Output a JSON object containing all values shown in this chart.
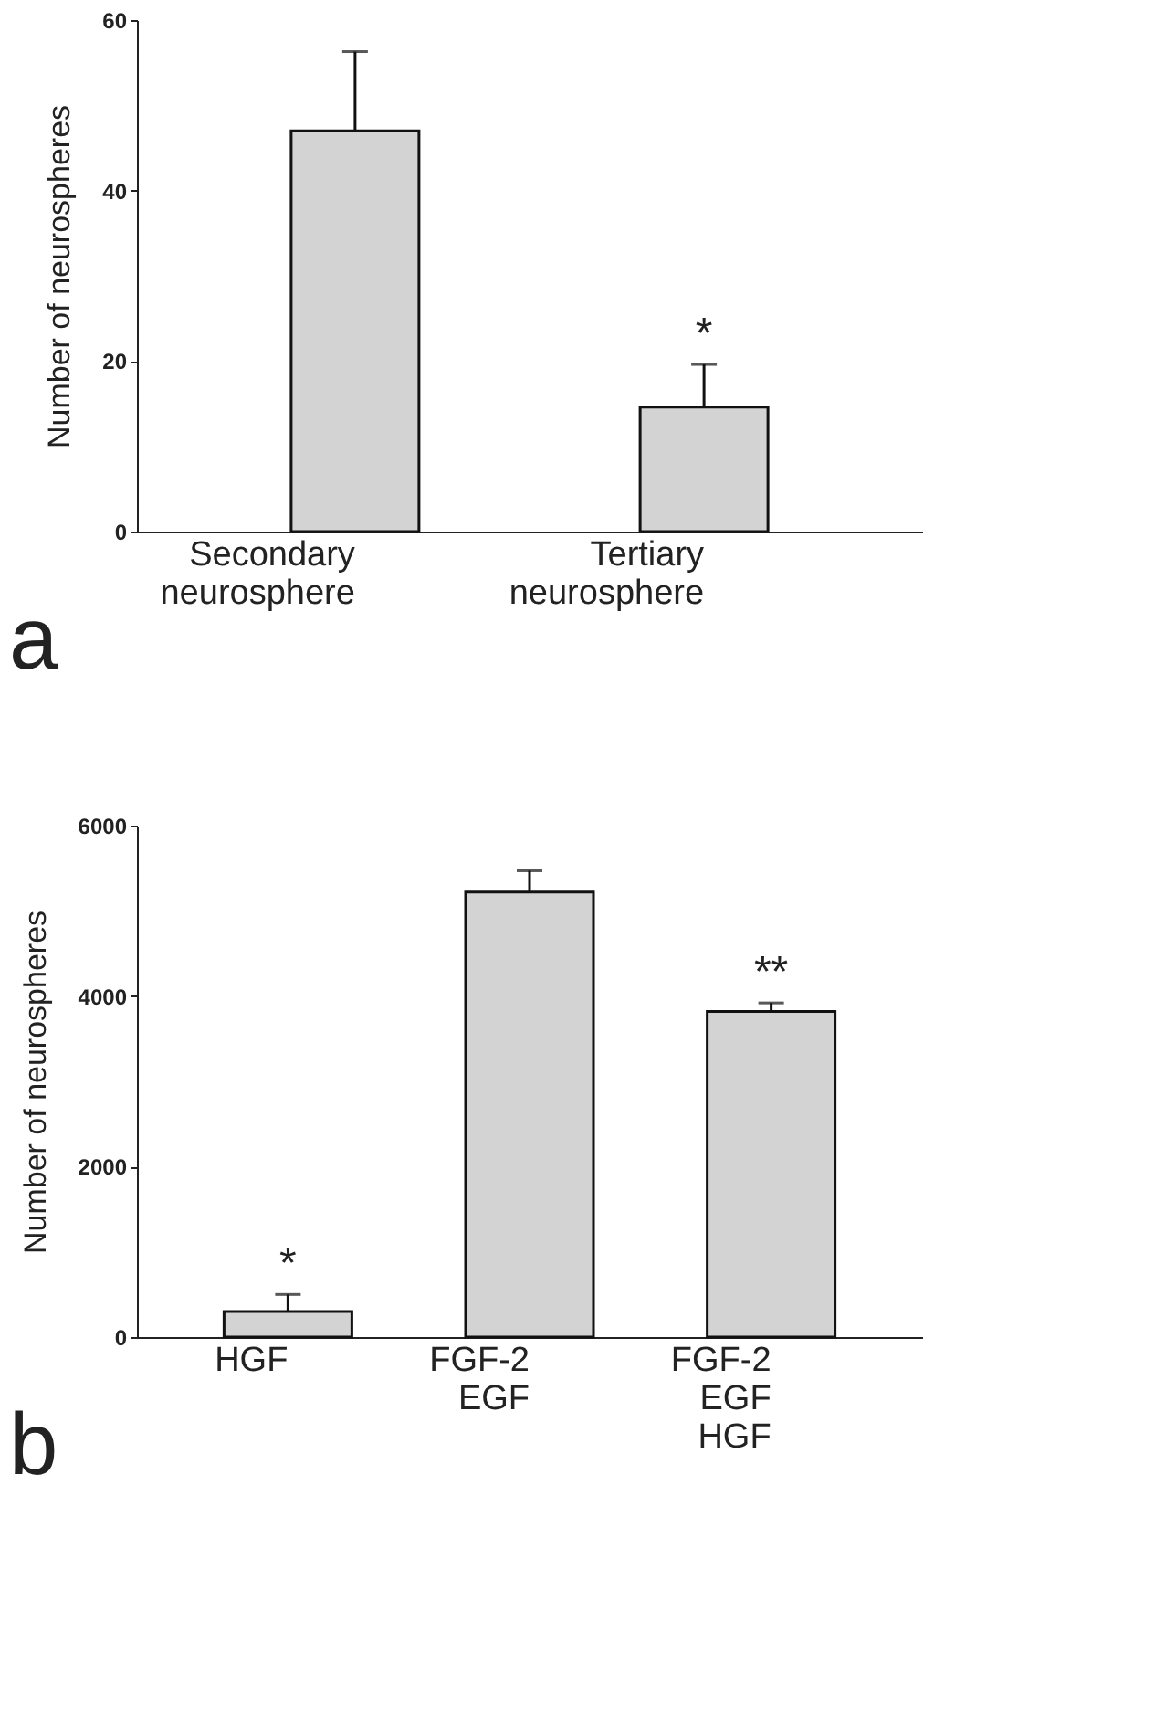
{
  "chart_data": [
    {
      "type": "bar",
      "ylabel": "Number of neurospheres",
      "categories": [
        "Secondary neurosphere",
        "Tertiary neurosphere"
      ],
      "values": [
        47,
        14.6
      ],
      "errors": [
        9.3,
        5
      ],
      "color": "#d3d3d3",
      "ylim": [
        0,
        60
      ],
      "yticks": [
        0,
        20,
        40,
        60
      ],
      "grid": false,
      "value_labels": [
        null,
        "*"
      ],
      "annotations": [
        "a"
      ]
    },
    {
      "type": "bar",
      "ylabel": "Number of neurospheres",
      "categories": [
        "HGF",
        "FGF-2 EGF",
        "FGF-2 EGF HGF"
      ],
      "values": [
        300,
        5220,
        3820
      ],
      "errors": [
        200,
        250,
        100
      ],
      "color": "#d3d3d3",
      "ylim": [
        0,
        6000
      ],
      "yticks": [
        0,
        2000,
        4000,
        6000
      ],
      "grid": false,
      "value_labels": [
        "*",
        null,
        "**"
      ],
      "annotations": [
        "b"
      ]
    }
  ]
}
